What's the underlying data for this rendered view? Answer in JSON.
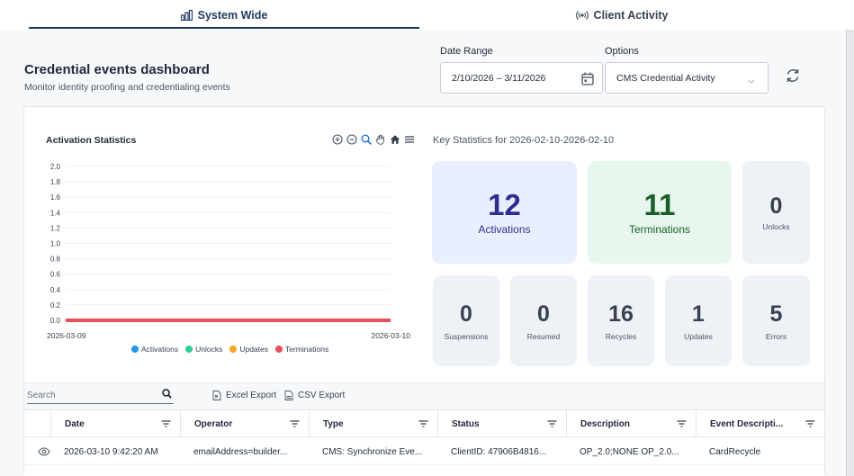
{
  "tabs": [
    {
      "label": "System Wide",
      "icon": "bar-chart-icon",
      "active": true
    },
    {
      "label": "Client Activity",
      "icon": "broadcast-icon",
      "active": false
    }
  ],
  "header": {
    "title": "Credential events dashboard",
    "subtitle": "Monitor identity proofing and credentialing events"
  },
  "filters": {
    "date_range_label": "Date Range",
    "date_range_value": "2/10/2026 – 3/11/2026",
    "options_label": "Options",
    "options_value": "CMS Credential Activity"
  },
  "chart_panel": {
    "title": "Activation Statistics",
    "tools": [
      "zoom-in-icon",
      "zoom-out-icon",
      "magnifier-icon",
      "pan-hand-icon",
      "home-icon",
      "menu-icon"
    ]
  },
  "chart_data": {
    "type": "line",
    "title": "Activation Statistics",
    "x": [
      "2026-03-09",
      "2026-03-10"
    ],
    "y_ticks": [
      "2.0",
      "1.8",
      "1.6",
      "1.4",
      "1.2",
      "1.0",
      "0.8",
      "0.6",
      "0.4",
      "0.2",
      "0.0"
    ],
    "ylim": [
      0,
      2
    ],
    "grid": true,
    "legend_position": "bottom",
    "series": [
      {
        "name": "Activations",
        "color": "#2196f3",
        "values": [
          0,
          0
        ]
      },
      {
        "name": "Unlocks",
        "color": "#2ecc9a",
        "values": [
          0,
          0
        ]
      },
      {
        "name": "Updates",
        "color": "#f5a623",
        "values": [
          0,
          0
        ]
      },
      {
        "name": "Terminations",
        "color": "#e8505b",
        "values": [
          0,
          0
        ]
      }
    ]
  },
  "stats": {
    "title": "Key Statistics for 2026-02-10-2026-02-10",
    "activations": {
      "value": "12",
      "label": "Activations"
    },
    "terminations": {
      "value": "11",
      "label": "Terminations"
    },
    "unlocks": {
      "value": "0",
      "label": "Unlocks"
    },
    "suspensions": {
      "value": "0",
      "label": "Suspensions"
    },
    "resumed": {
      "value": "0",
      "label": "Resumed"
    },
    "recycles": {
      "value": "16",
      "label": "Recycles"
    },
    "updates": {
      "value": "1",
      "label": "Updates"
    },
    "errors": {
      "value": "5",
      "label": "Errors"
    }
  },
  "grid": {
    "search_placeholder": "Search",
    "excel_export": "Excel Export",
    "csv_export": "CSV Export",
    "columns": [
      "Date",
      "Operator",
      "Type",
      "Status",
      "Description",
      "Event Descripti..."
    ],
    "rows": [
      [
        "2026-03-10 9:42:20 AM",
        "emailAddress=builder...",
        "CMS: Synchronize Eve...",
        "ClientID: 47906B4816...",
        "OP_2.0;NONE OP_2.0...",
        "CardRecycle"
      ]
    ]
  }
}
